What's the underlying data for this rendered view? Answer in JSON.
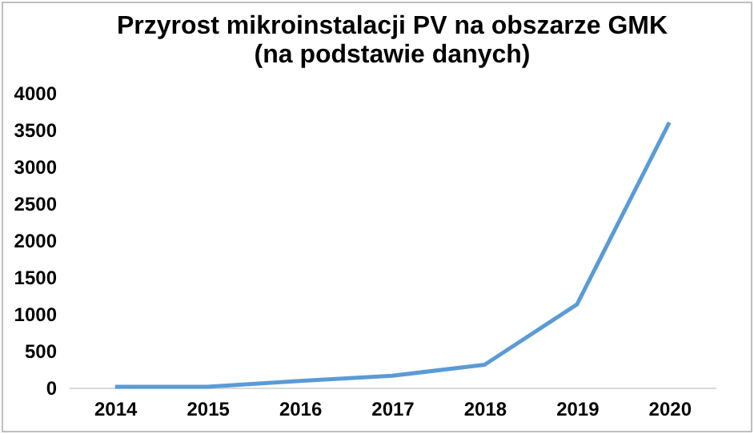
{
  "chart_data": {
    "type": "line",
    "title": [
      "Przyrost mikroinstalacji PV na obszarze GMK",
      "(na podstawie danych)"
    ],
    "categories": [
      "2014",
      "2015",
      "2016",
      "2017",
      "2018",
      "2019",
      "2020"
    ],
    "series": [
      {
        "color": "#5b9bd5",
        "values": [
          10,
          10,
          90,
          160,
          310,
          1130,
          3600
        ]
      }
    ],
    "ylim": [
      0,
      4000
    ],
    "yticks": [
      0,
      500,
      1000,
      1500,
      2000,
      2500,
      3000,
      3500,
      4000
    ],
    "grid": false,
    "legend": false,
    "marker": "none",
    "line_style": "solid"
  }
}
